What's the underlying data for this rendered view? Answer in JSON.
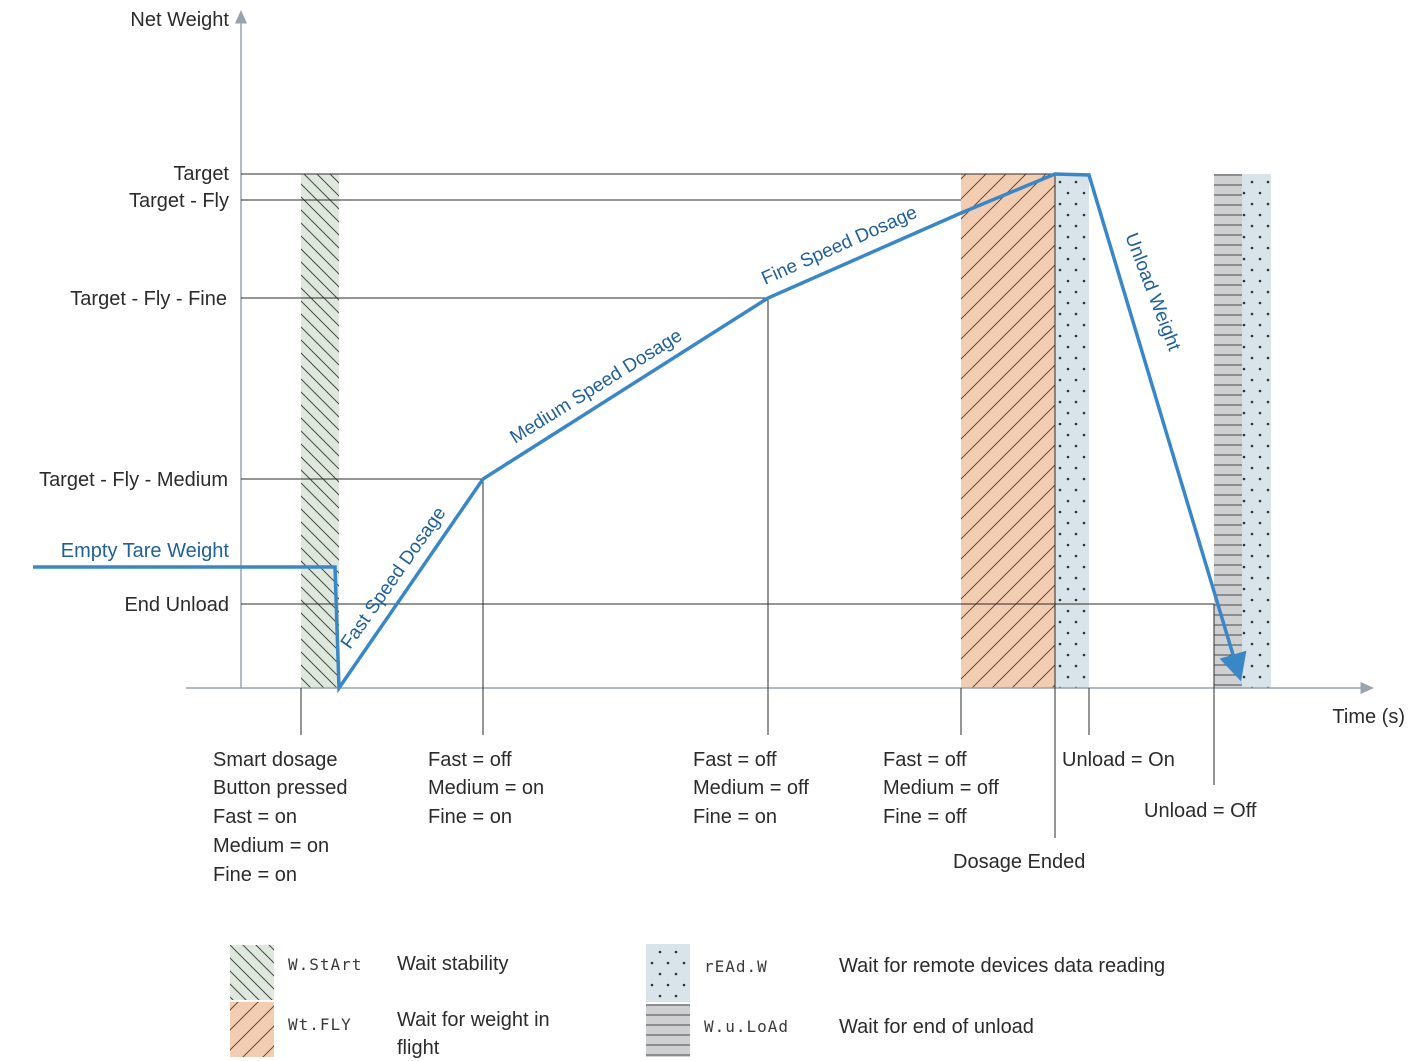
{
  "axes": {
    "y_label": "Net Weight",
    "x_label": "Time (s)"
  },
  "y_levels": {
    "target": "Target",
    "target_fly": "Target - Fly",
    "target_fly_fine": "Target - Fly - Fine",
    "target_fly_medium": "Target - Fly - Medium",
    "empty_tare": "Empty Tare Weight",
    "end_unload": "End Unload"
  },
  "curve_labels": {
    "fast": "Fast Speed Dosage",
    "medium": "Medium Speed Dosage",
    "fine": "Fine Speed Dosage",
    "unload": "Unload Weight"
  },
  "events": {
    "start": [
      "Smart dosage",
      "Button pressed",
      "Fast = on",
      "Medium = on",
      "Fine = on"
    ],
    "after_fast": [
      "Fast = off",
      "Medium = on",
      "Fine = on"
    ],
    "after_medium": [
      "Fast = off",
      "Medium = off",
      "Fine = on"
    ],
    "after_fine": [
      "Fast = off",
      "Medium = off",
      "Fine = off"
    ],
    "dosage_ended": "Dosage Ended",
    "unload_on": "Unload = On",
    "unload_off": "Unload = Off"
  },
  "legend": [
    {
      "code": "W.StArt",
      "text": [
        "Wait stability"
      ],
      "color": "#dfe8dc",
      "pattern": "hatch-back"
    },
    {
      "code": "Wt.FLY",
      "text": [
        "Wait for weight in",
        "flight"
      ],
      "color": "#f3cdb2",
      "pattern": "hatch-fwd"
    },
    {
      "code": "rEAd.W",
      "text": [
        "Wait for remote devices data reading"
      ],
      "color": "#d9e3ea",
      "pattern": "dots"
    },
    {
      "code": "W.u.LoAd",
      "text": [
        "Wait for end of unload"
      ],
      "color": "#cfd0d2",
      "pattern": "hlines"
    }
  ],
  "colors": {
    "curve": "#3a87c8",
    "tare_label": "#1f5f9a",
    "wait_stability": "#dfe8dc",
    "weight_in_flight": "#f3cdb2",
    "remote_read": "#d9e3ea",
    "end_unload": "#cfd0d2"
  }
}
